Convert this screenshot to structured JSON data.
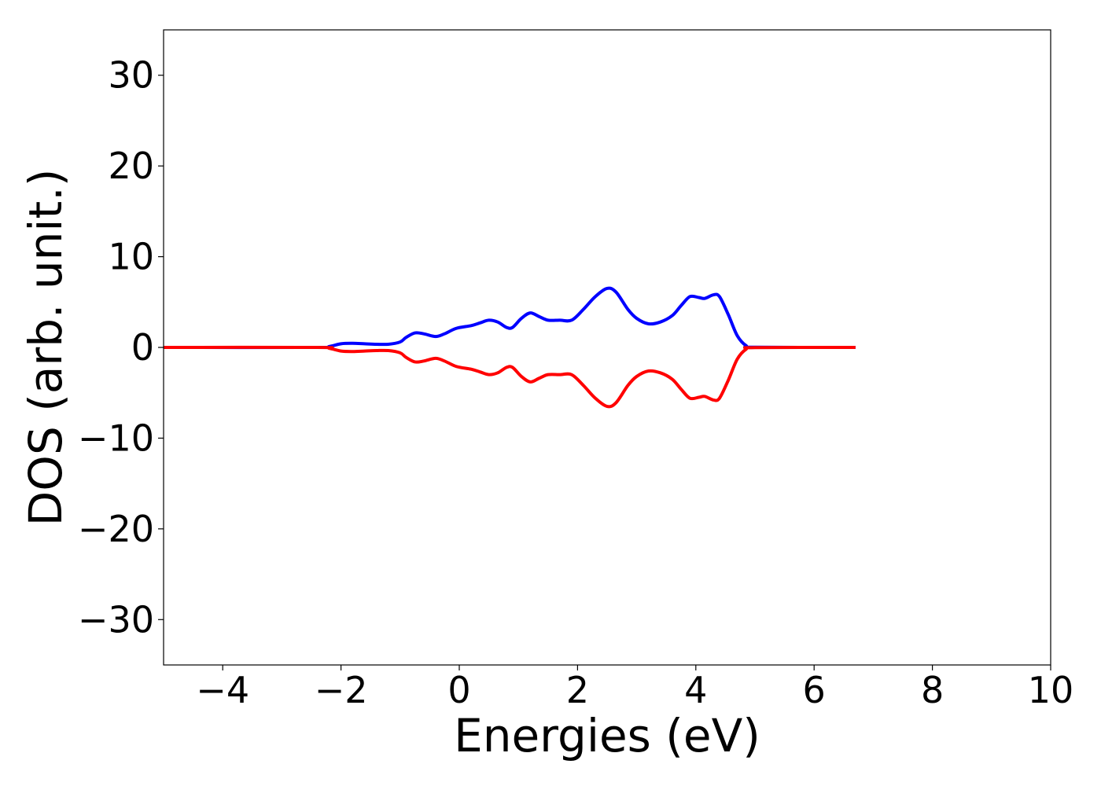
{
  "chart_data": {
    "type": "line",
    "title": "",
    "xlabel": "Energies (eV)",
    "ylabel": "DOS (arb. unit.)",
    "xlim": [
      -5,
      10
    ],
    "ylim": [
      -35,
      35
    ],
    "xticks": [
      -4,
      -2,
      0,
      2,
      4,
      6,
      8,
      10
    ],
    "yticks": [
      -30,
      -20,
      -10,
      0,
      10,
      20,
      30
    ],
    "xtick_labels": [
      "−4",
      "−2",
      "0",
      "2",
      "4",
      "6",
      "8",
      "10"
    ],
    "ytick_labels": [
      "−30",
      "−20",
      "−10",
      "0",
      "10",
      "20",
      "30"
    ],
    "grid": false,
    "legend": "none",
    "series": [
      {
        "color": "#0000ff",
        "points": [
          [
            -5,
            0
          ],
          [
            -2.4,
            0
          ],
          [
            -2.2,
            0.1
          ],
          [
            -2.0,
            0.4
          ],
          [
            -1.8,
            0.45
          ],
          [
            -1.6,
            0.4
          ],
          [
            -1.4,
            0.35
          ],
          [
            -1.2,
            0.35
          ],
          [
            -1.0,
            0.6
          ],
          [
            -0.9,
            1.1
          ],
          [
            -0.75,
            1.6
          ],
          [
            -0.6,
            1.5
          ],
          [
            -0.4,
            1.2
          ],
          [
            -0.25,
            1.5
          ],
          [
            -0.05,
            2.1
          ],
          [
            0.2,
            2.4
          ],
          [
            0.35,
            2.7
          ],
          [
            0.5,
            3.0
          ],
          [
            0.65,
            2.8
          ],
          [
            0.8,
            2.2
          ],
          [
            0.9,
            2.2
          ],
          [
            1.05,
            3.2
          ],
          [
            1.2,
            3.8
          ],
          [
            1.35,
            3.4
          ],
          [
            1.5,
            3.0
          ],
          [
            1.7,
            3.0
          ],
          [
            1.9,
            3.0
          ],
          [
            2.1,
            4.2
          ],
          [
            2.3,
            5.6
          ],
          [
            2.5,
            6.5
          ],
          [
            2.65,
            6.1
          ],
          [
            2.85,
            4.2
          ],
          [
            3.0,
            3.2
          ],
          [
            3.2,
            2.6
          ],
          [
            3.4,
            2.8
          ],
          [
            3.6,
            3.5
          ],
          [
            3.75,
            4.6
          ],
          [
            3.9,
            5.6
          ],
          [
            4.05,
            5.5
          ],
          [
            4.15,
            5.4
          ],
          [
            4.3,
            5.8
          ],
          [
            4.4,
            5.6
          ],
          [
            4.55,
            3.6
          ],
          [
            4.7,
            1.3
          ],
          [
            4.85,
            0.2
          ],
          [
            5.0,
            0.02
          ],
          [
            6.7,
            0
          ]
        ]
      },
      {
        "color": "#ff0000",
        "points": [
          [
            -5,
            0
          ],
          [
            -2.4,
            0
          ],
          [
            -2.2,
            -0.1
          ],
          [
            -2.0,
            -0.4
          ],
          [
            -1.8,
            -0.45
          ],
          [
            -1.6,
            -0.4
          ],
          [
            -1.4,
            -0.35
          ],
          [
            -1.2,
            -0.35
          ],
          [
            -1.0,
            -0.6
          ],
          [
            -0.9,
            -1.1
          ],
          [
            -0.75,
            -1.6
          ],
          [
            -0.6,
            -1.5
          ],
          [
            -0.4,
            -1.2
          ],
          [
            -0.25,
            -1.5
          ],
          [
            -0.05,
            -2.1
          ],
          [
            0.2,
            -2.4
          ],
          [
            0.35,
            -2.7
          ],
          [
            0.5,
            -3.0
          ],
          [
            0.65,
            -2.8
          ],
          [
            0.8,
            -2.2
          ],
          [
            0.9,
            -2.2
          ],
          [
            1.05,
            -3.2
          ],
          [
            1.2,
            -3.8
          ],
          [
            1.35,
            -3.4
          ],
          [
            1.5,
            -3.0
          ],
          [
            1.7,
            -3.0
          ],
          [
            1.9,
            -3.0
          ],
          [
            2.1,
            -4.2
          ],
          [
            2.3,
            -5.6
          ],
          [
            2.5,
            -6.5
          ],
          [
            2.65,
            -6.1
          ],
          [
            2.85,
            -4.2
          ],
          [
            3.0,
            -3.2
          ],
          [
            3.2,
            -2.6
          ],
          [
            3.4,
            -2.8
          ],
          [
            3.6,
            -3.5
          ],
          [
            3.75,
            -4.6
          ],
          [
            3.9,
            -5.6
          ],
          [
            4.05,
            -5.5
          ],
          [
            4.15,
            -5.4
          ],
          [
            4.3,
            -5.8
          ],
          [
            4.4,
            -5.6
          ],
          [
            4.55,
            -3.6
          ],
          [
            4.7,
            -1.3
          ],
          [
            4.85,
            -0.2
          ],
          [
            5.0,
            -0.02
          ],
          [
            6.7,
            0
          ]
        ]
      }
    ]
  }
}
